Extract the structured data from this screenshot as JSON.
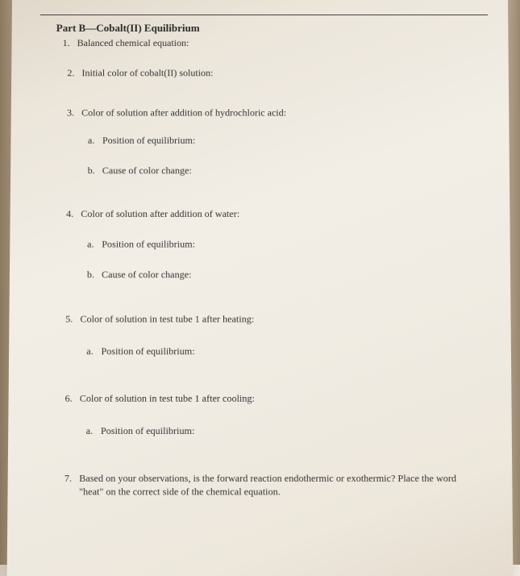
{
  "part_title": "Part B—Cobalt(II) Equilibrium",
  "q1": {
    "num": "1.",
    "text": "Balanced chemical equation:"
  },
  "q2": {
    "num": "2.",
    "text": "Initial color of cobalt(II) solution:"
  },
  "q3": {
    "num": "3.",
    "text": "Color of solution after addition of hydrochloric acid:",
    "a": {
      "let": "a.",
      "text": "Position of equilibrium:"
    },
    "b": {
      "let": "b.",
      "text": "Cause of color change:"
    }
  },
  "q4": {
    "num": "4.",
    "text": "Color of solution after addition of water:",
    "a": {
      "let": "a.",
      "text": "Position of equilibrium:"
    },
    "b": {
      "let": "b.",
      "text": "Cause of color change:"
    }
  },
  "q5": {
    "num": "5.",
    "text": "Color of solution in test tube 1 after heating:",
    "a": {
      "let": "a.",
      "text": "Position of equilibrium:"
    }
  },
  "q6": {
    "num": "6.",
    "text": "Color of solution in test tube 1 after cooling:",
    "a": {
      "let": "a.",
      "text": "Position of equilibrium:"
    }
  },
  "q7": {
    "num": "7.",
    "text": "Based on your observations, is the forward reaction endothermic or exothermic? Place the word",
    "cont": "\"heat\" on the correct side of the chemical equation."
  }
}
